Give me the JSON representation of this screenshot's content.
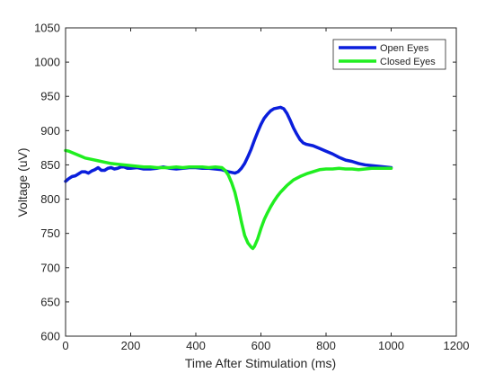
{
  "chart_data": {
    "type": "line",
    "title": "",
    "xlabel": "Time After Stimulation (ms)",
    "ylabel": "Voltage (uV)",
    "xlim": [
      0,
      1200
    ],
    "ylim": [
      600,
      1050
    ],
    "xticks": [
      0,
      200,
      400,
      600,
      800,
      1000,
      1200
    ],
    "yticks": [
      600,
      650,
      700,
      750,
      800,
      850,
      900,
      950,
      1000,
      1050
    ],
    "grid": false,
    "legend_position": "top-right",
    "series": [
      {
        "name": "Open Eyes",
        "color": "#0a1edc",
        "x": [
          0,
          10,
          20,
          30,
          40,
          50,
          60,
          70,
          80,
          90,
          100,
          110,
          120,
          130,
          140,
          150,
          160,
          170,
          180,
          190,
          200,
          220,
          240,
          260,
          280,
          300,
          320,
          340,
          360,
          380,
          400,
          420,
          440,
          460,
          480,
          500,
          510,
          520,
          530,
          540,
          550,
          560,
          570,
          580,
          590,
          600,
          610,
          620,
          630,
          640,
          650,
          660,
          670,
          680,
          690,
          700,
          710,
          720,
          730,
          740,
          760,
          780,
          800,
          820,
          840,
          860,
          880,
          900,
          920,
          940,
          960,
          980,
          1000
        ],
        "values": [
          826,
          830,
          833,
          834,
          837,
          840,
          840,
          838,
          841,
          843,
          846,
          842,
          842,
          845,
          846,
          844,
          845,
          847,
          847,
          845,
          845,
          846,
          844,
          844,
          845,
          847,
          845,
          844,
          845,
          846,
          846,
          845,
          845,
          844,
          843,
          840,
          839,
          838,
          840,
          845,
          852,
          862,
          873,
          886,
          898,
          909,
          918,
          924,
          929,
          932,
          933,
          934,
          932,
          925,
          915,
          904,
          895,
          887,
          882,
          880,
          878,
          874,
          870,
          866,
          861,
          857,
          855,
          852,
          850,
          849,
          848,
          847,
          846
        ]
      },
      {
        "name": "Closed Eyes",
        "color": "#20ee20",
        "x": [
          0,
          10,
          20,
          30,
          40,
          50,
          60,
          80,
          100,
          120,
          140,
          160,
          180,
          200,
          220,
          240,
          260,
          280,
          300,
          320,
          340,
          360,
          380,
          400,
          420,
          440,
          460,
          480,
          490,
          500,
          510,
          520,
          530,
          540,
          550,
          560,
          570,
          575,
          580,
          590,
          600,
          610,
          620,
          630,
          640,
          650,
          660,
          670,
          680,
          690,
          700,
          720,
          740,
          760,
          780,
          800,
          820,
          840,
          860,
          880,
          900,
          920,
          940,
          960,
          980,
          1000
        ],
        "values": [
          871,
          870,
          868,
          866,
          864,
          862,
          860,
          858,
          856,
          854,
          852,
          851,
          850,
          849,
          848,
          847,
          847,
          846,
          846,
          846,
          847,
          846,
          847,
          847,
          847,
          846,
          847,
          846,
          842,
          835,
          824,
          810,
          790,
          767,
          747,
          736,
          730,
          728,
          731,
          742,
          757,
          770,
          780,
          789,
          797,
          804,
          810,
          815,
          820,
          824,
          828,
          833,
          837,
          840,
          843,
          844,
          844,
          845,
          844,
          844,
          843,
          844,
          845,
          845,
          845,
          845
        ]
      }
    ]
  }
}
